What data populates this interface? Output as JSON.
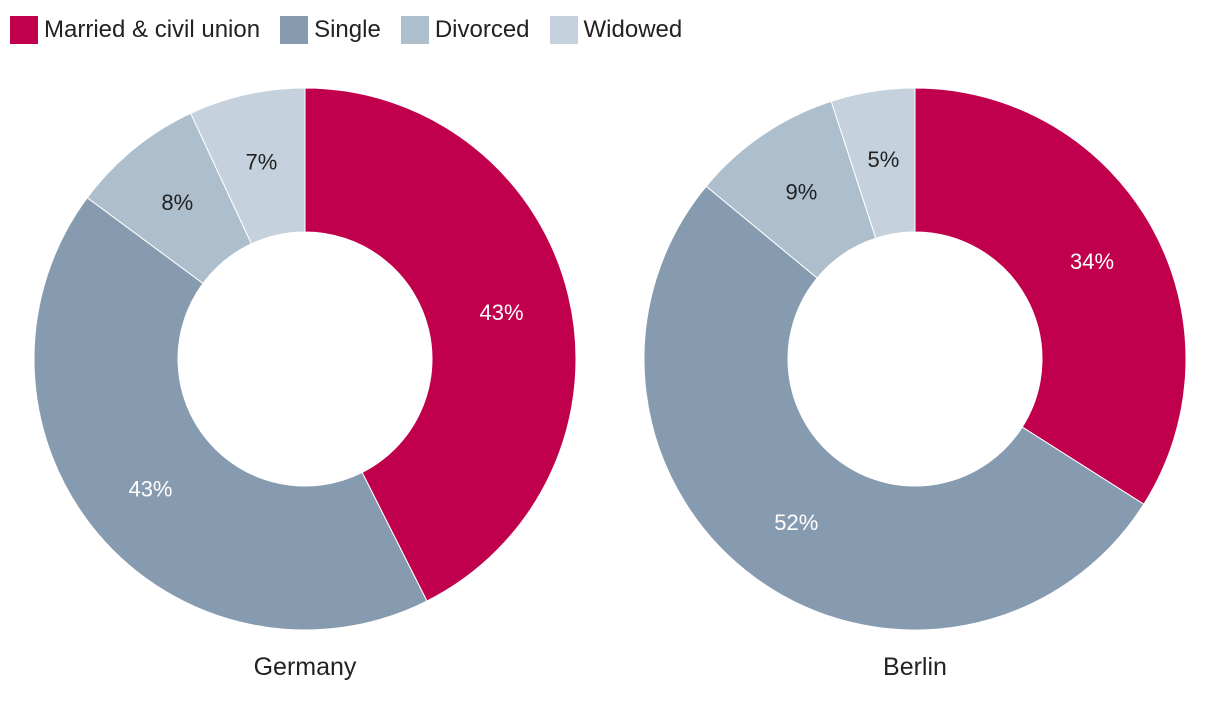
{
  "legend": [
    {
      "label": "Married & civil union",
      "color": "#c0004c"
    },
    {
      "label": "Single",
      "color": "#879bb0"
    },
    {
      "label": "Divorced",
      "color": "#adbecd"
    },
    {
      "label": "Widowed",
      "color": "#c5d2dd"
    }
  ],
  "chart_data": [
    {
      "type": "pie",
      "subtype": "donut",
      "title": "Germany",
      "categories": [
        "Married & civil union",
        "Single",
        "Divorced",
        "Widowed"
      ],
      "values": [
        43,
        43,
        8,
        7
      ],
      "value_labels": [
        "43%",
        "43%",
        "8%",
        "7%"
      ],
      "colors": [
        "#c0004c",
        "#879bb0",
        "#adbecd",
        "#c5d2dd"
      ],
      "label_colors": [
        "#ffffff",
        "#ffffff",
        "#222222",
        "#222222"
      ],
      "start_angle": "12 o'clock",
      "direction": "clockwise",
      "legend": "top-left"
    },
    {
      "type": "pie",
      "subtype": "donut",
      "title": "Berlin",
      "categories": [
        "Married & civil union",
        "Single",
        "Divorced",
        "Widowed"
      ],
      "values": [
        34,
        52,
        9,
        5
      ],
      "value_labels": [
        "34%",
        "52%",
        "9%",
        "5%"
      ],
      "colors": [
        "#c0004c",
        "#879bb0",
        "#adbecd",
        "#c5d2dd"
      ],
      "label_colors": [
        "#ffffff",
        "#ffffff",
        "#222222",
        "#222222"
      ],
      "start_angle": "12 o'clock",
      "direction": "clockwise",
      "legend": "top-left"
    }
  ]
}
